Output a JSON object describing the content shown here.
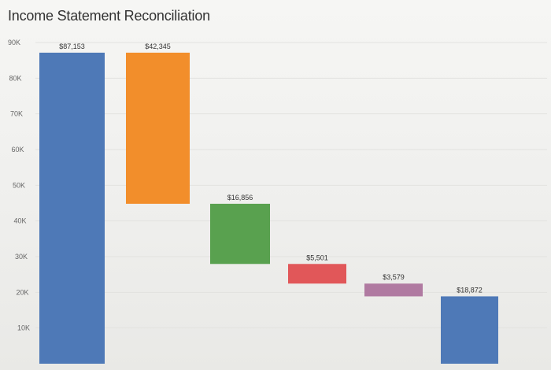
{
  "chart_data": {
    "type": "bar",
    "title": "Income Statement Reconciliation",
    "xlabel": "",
    "ylabel": "",
    "ylim": [
      0,
      90000
    ],
    "yticks": [
      {
        "value": 90000,
        "label": "90K"
      },
      {
        "value": 80000,
        "label": "80K"
      },
      {
        "value": 70000,
        "label": "70K"
      },
      {
        "value": 60000,
        "label": "60K"
      },
      {
        "value": 50000,
        "label": "50K"
      },
      {
        "value": 40000,
        "label": "40K"
      },
      {
        "value": 30000,
        "label": "30K"
      },
      {
        "value": 20000,
        "label": "20K"
      },
      {
        "value": 10000,
        "label": "10K"
      }
    ],
    "grid": true,
    "bars": [
      {
        "label": "$87,153",
        "value": 87153,
        "start": 0,
        "end": 87153,
        "color": "#4e79b7"
      },
      {
        "label": "$42,345",
        "value": 42345,
        "start": 44808,
        "end": 87153,
        "color": "#f28e2b"
      },
      {
        "label": "$16,856",
        "value": 16856,
        "start": 27952,
        "end": 44808,
        "color": "#59a14f"
      },
      {
        "label": "$5,501",
        "value": 5501,
        "start": 22451,
        "end": 27952,
        "color": "#e15759"
      },
      {
        "label": "$3,579",
        "value": 3579,
        "start": 18872,
        "end": 22451,
        "color": "#b07aa1"
      },
      {
        "label": "$18,872",
        "value": 18872,
        "start": 0,
        "end": 18872,
        "color": "#4e79b7"
      }
    ]
  }
}
